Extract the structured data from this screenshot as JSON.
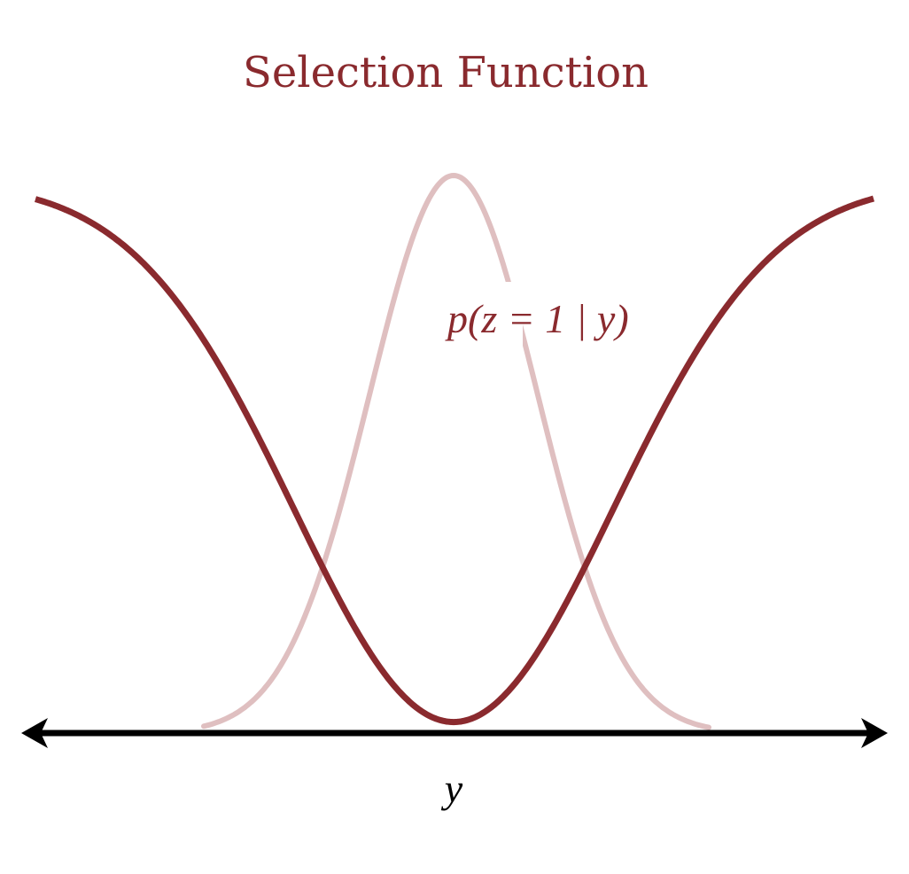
{
  "figure": {
    "title": "Selection Function",
    "curve_label": "p(z = 1 | y)",
    "axis_label": "y"
  },
  "colors": {
    "title": "#8a2a2e",
    "selection_curve": "#8a2a2e",
    "density_curve": "#dfbfc0",
    "axis": "#000000",
    "background": "#ffffff"
  },
  "curves": {
    "selection_function": {
      "shape": "inverted-bell",
      "min_value": 0.02,
      "max_value": 1.0
    },
    "density": {
      "shape": "bell",
      "peak_value": 1.0
    }
  },
  "axis": {
    "direction": "horizontal",
    "arrows": "both-ends"
  }
}
